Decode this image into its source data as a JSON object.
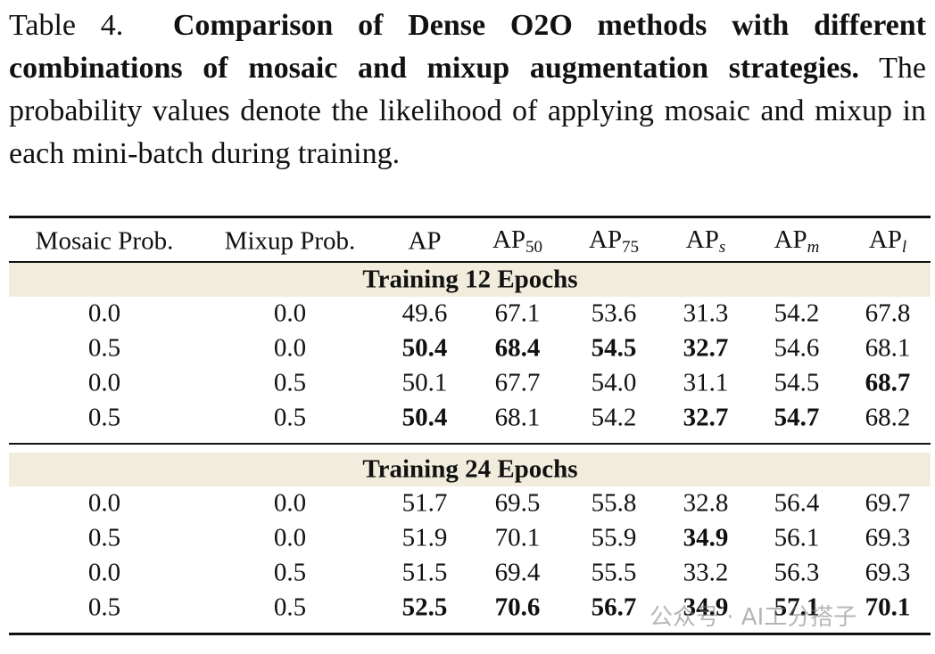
{
  "caption": {
    "label": "Table 4.",
    "title": "Comparison of Dense O2O methods with different combinations of mosaic and mixup augmentation strategies.",
    "text": "The probability values denote the likelihood of applying mosaic and mixup in each mini-batch during training."
  },
  "table": {
    "columns": [
      {
        "label": "Mosaic Prob."
      },
      {
        "label": "Mixup Prob."
      },
      {
        "label": "AP"
      },
      {
        "label": "AP",
        "sub": "50"
      },
      {
        "label": "AP",
        "sub": "75"
      },
      {
        "label": "AP",
        "sub": "s",
        "italic_sub": true
      },
      {
        "label": "AP",
        "sub": "m",
        "italic_sub": true
      },
      {
        "label": "AP",
        "sub": "l",
        "italic_sub": true
      }
    ],
    "sections": [
      {
        "title": "Training 12 Epochs",
        "rows": [
          {
            "cells": [
              "0.0",
              "0.0",
              "49.6",
              "67.1",
              "53.6",
              "31.3",
              "54.2",
              "67.8"
            ],
            "bold": []
          },
          {
            "cells": [
              "0.5",
              "0.0",
              "50.4",
              "68.4",
              "54.5",
              "32.7",
              "54.6",
              "68.1"
            ],
            "bold": [
              2,
              3,
              4,
              5
            ]
          },
          {
            "cells": [
              "0.0",
              "0.5",
              "50.1",
              "67.7",
              "54.0",
              "31.1",
              "54.5",
              "68.7"
            ],
            "bold": [
              7
            ]
          },
          {
            "cells": [
              "0.5",
              "0.5",
              "50.4",
              "68.1",
              "54.2",
              "32.7",
              "54.7",
              "68.2"
            ],
            "bold": [
              2,
              5,
              6
            ]
          }
        ]
      },
      {
        "title": "Training 24 Epochs",
        "rows": [
          {
            "cells": [
              "0.0",
              "0.0",
              "51.7",
              "69.5",
              "55.8",
              "32.8",
              "56.4",
              "69.7"
            ],
            "bold": []
          },
          {
            "cells": [
              "0.5",
              "0.0",
              "51.9",
              "70.1",
              "55.9",
              "34.9",
              "56.1",
              "69.3"
            ],
            "bold": [
              5
            ]
          },
          {
            "cells": [
              "0.0",
              "0.5",
              "51.5",
              "69.4",
              "55.5",
              "33.2",
              "56.3",
              "69.3"
            ],
            "bold": []
          },
          {
            "cells": [
              "0.5",
              "0.5",
              "52.5",
              "70.6",
              "56.7",
              "34.9",
              "57.1",
              "70.1"
            ],
            "bold": [
              2,
              3,
              4,
              5,
              6,
              7
            ]
          }
        ]
      }
    ]
  },
  "watermark": "公众号 · AI工分搭子"
}
